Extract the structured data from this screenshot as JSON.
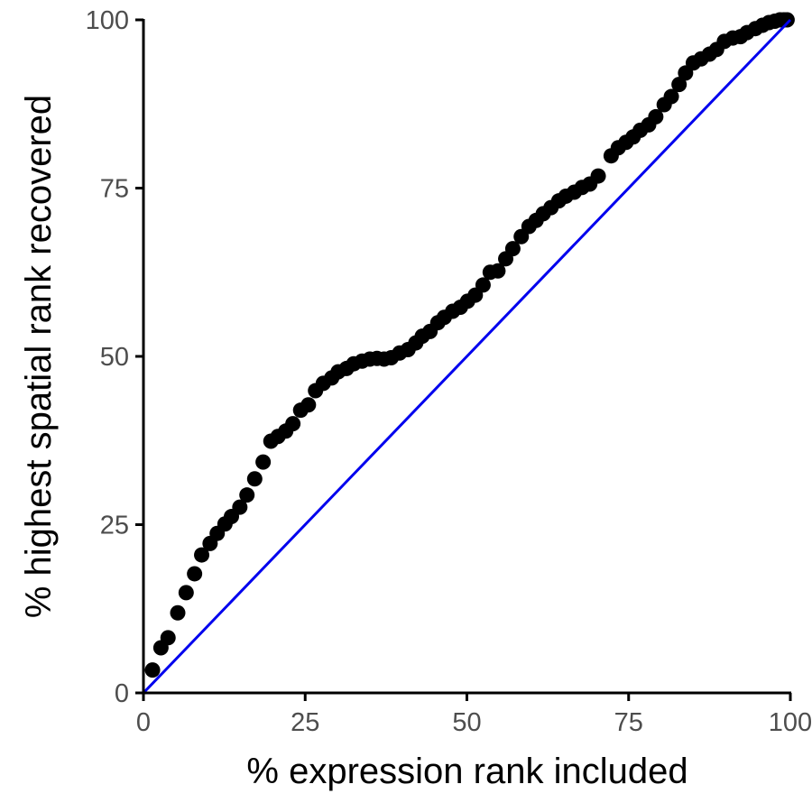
{
  "chart_data": {
    "type": "scatter",
    "xlabel": "% expression rank included",
    "ylabel": "% highest spatial rank recovered",
    "xlim": [
      0,
      100
    ],
    "ylim": [
      0,
      100
    ],
    "xticks": [
      0,
      25,
      50,
      75,
      100
    ],
    "yticks": [
      0,
      25,
      50,
      75,
      100
    ],
    "grid": false,
    "legend": "none",
    "point_color": "#000000",
    "reference_line": {
      "from": [
        0,
        0
      ],
      "to": [
        100,
        100
      ],
      "color": "#0000ee"
    },
    "series": [
      {
        "x": [
          1.4,
          2.7,
          3.8,
          5.3,
          6.6,
          7.9,
          9.0,
          10.3,
          11.4,
          12.6,
          13.6,
          14.9,
          16.0,
          17.2,
          18.5,
          19.7,
          20.8,
          22.0,
          23.1,
          24.3,
          25.5,
          26.6,
          27.8,
          29.1,
          30.1,
          31.4,
          32.5,
          33.8,
          35.0,
          36.1,
          37.2,
          38.3,
          39.6,
          40.9,
          42.1,
          43.1,
          44.3,
          45.5,
          46.5,
          47.8,
          49.0,
          50.1,
          51.3,
          52.5,
          53.6,
          54.8,
          56.0,
          57.1,
          58.4,
          59.6,
          60.7,
          61.8,
          63.0,
          64.2,
          65.3,
          66.6,
          67.8,
          69.0,
          70.3,
          72.3,
          73.4,
          74.6,
          75.7,
          76.8,
          78.1,
          79.2,
          80.5,
          81.6,
          82.8,
          83.8,
          85.0,
          86.2,
          87.5,
          88.6,
          89.8,
          91.1,
          92.3,
          93.3,
          94.6,
          95.7,
          96.7,
          97.6,
          98.4,
          99.0,
          99.5
        ],
        "y": [
          3.4,
          6.7,
          8.2,
          11.9,
          14.9,
          17.7,
          20.5,
          22.2,
          23.7,
          25.1,
          26.2,
          27.6,
          29.4,
          31.8,
          34.3,
          37.4,
          38.1,
          38.9,
          40.0,
          42.0,
          42.8,
          44.9,
          46.0,
          46.8,
          47.7,
          48.2,
          48.9,
          49.3,
          49.6,
          49.7,
          49.6,
          49.8,
          50.5,
          51.0,
          52.0,
          53.0,
          53.7,
          55.0,
          55.8,
          56.7,
          57.3,
          58.2,
          59.1,
          60.6,
          62.5,
          62.7,
          64.5,
          66.0,
          67.8,
          69.3,
          70.2,
          71.2,
          72.1,
          73.1,
          73.8,
          74.4,
          75.1,
          75.6,
          76.8,
          79.8,
          81.0,
          81.8,
          82.6,
          83.6,
          84.4,
          85.6,
          87.4,
          88.6,
          90.4,
          92.1,
          93.6,
          94.2,
          94.9,
          95.6,
          96.8,
          97.3,
          97.5,
          98.1,
          98.7,
          99.2,
          99.6,
          99.8,
          100.0,
          100.0,
          100.0
        ]
      }
    ]
  }
}
